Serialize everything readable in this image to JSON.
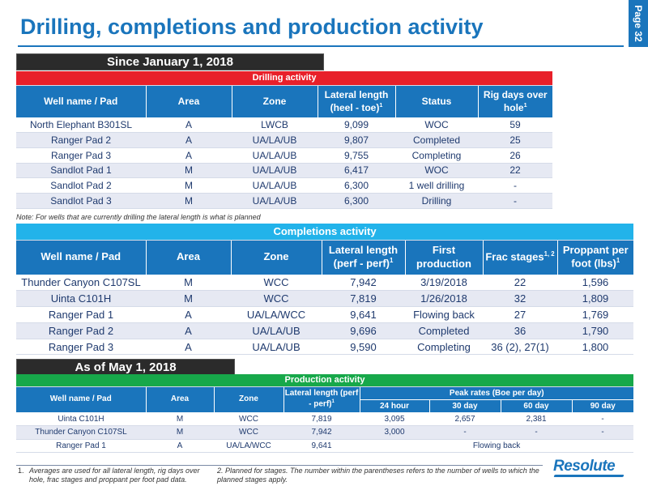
{
  "header": {
    "title": "Drilling, completions and production activity",
    "page_label": "Page 32"
  },
  "since_section": {
    "label": "Since January 1, 2018"
  },
  "drilling": {
    "title": "Drilling activity",
    "headers": [
      "Well name / Pad",
      "Area",
      "Zone",
      "Lateral length (heel - toe)",
      "Status",
      "Rig days over hole"
    ],
    "header_sups": [
      "",
      "",
      "",
      "1",
      "",
      "1"
    ],
    "rows": [
      [
        "North Elephant B301SL",
        "A",
        "LWCB",
        "9,099",
        "WOC",
        "59"
      ],
      [
        "Ranger Pad 2",
        "A",
        "UA/LA/UB",
        "9,807",
        "Completed",
        "25"
      ],
      [
        "Ranger Pad 3",
        "A",
        "UA/LA/UB",
        "9,755",
        "Completing",
        "26"
      ],
      [
        "Sandlot Pad 1",
        "M",
        "UA/LA/UB",
        "6,417",
        "WOC",
        "22"
      ],
      [
        "Sandlot Pad 2",
        "M",
        "UA/LA/UB",
        "6,300",
        "1 well drilling",
        "-"
      ],
      [
        "Sandlot Pad 3",
        "M",
        "UA/LA/UB",
        "6,300",
        "Drilling",
        "-"
      ]
    ],
    "note": "Note: For wells that are currently drilling the lateral length is what is planned"
  },
  "completions": {
    "title": "Completions activity",
    "headers": [
      "Well name / Pad",
      "Area",
      "Zone",
      "Lateral length (perf - perf)",
      "First production",
      "Frac stages",
      "Proppant per foot (lbs)"
    ],
    "header_sups": [
      "",
      "",
      "",
      "1",
      "",
      "1, 2",
      "1"
    ],
    "rows": [
      [
        "Thunder Canyon C107SL",
        "M",
        "WCC",
        "7,942",
        "3/19/2018",
        "22",
        "1,596"
      ],
      [
        "Uinta C101H",
        "M",
        "WCC",
        "7,819",
        "1/26/2018",
        "32",
        "1,809"
      ],
      [
        "Ranger Pad 1",
        "A",
        "UA/LA/WCC",
        "9,641",
        "Flowing back",
        "27",
        "1,769"
      ],
      [
        "Ranger Pad 2",
        "A",
        "UA/LA/UB",
        "9,696",
        "Completed",
        "36",
        "1,790"
      ],
      [
        "Ranger Pad 3",
        "A",
        "UA/LA/UB",
        "9,590",
        "Completing",
        "36 (2), 27(1)",
        "1,800"
      ]
    ]
  },
  "asof_section": {
    "label": "As of May 1, 2018"
  },
  "production": {
    "title": "Production activity",
    "headers": [
      "Well name / Pad",
      "Area",
      "Zone",
      "Lateral length (perf - perf)"
    ],
    "header_sups": [
      "",
      "",
      "",
      "1"
    ],
    "peak_label": "Peak rates (Boe per day)",
    "peak_headers": [
      "24 hour",
      "30 day",
      "60 day",
      "90 day"
    ],
    "rows": [
      [
        "Uinta C101H",
        "M",
        "WCC",
        "7,819",
        "3,095",
        "2,657",
        "2,381",
        "-"
      ],
      [
        "Thunder Canyon C107SL",
        "M",
        "WCC",
        "7,942",
        "3,000",
        "-",
        "-",
        "-"
      ]
    ],
    "merged_row": [
      "Ranger Pad 1",
      "A",
      "UA/LA/WCC",
      "9,641",
      "Flowing back"
    ]
  },
  "footnotes": [
    {
      "num": "1.",
      "text": "Averages are used for all lateral length, rig days over hole, frac stages and proppant per foot pad data."
    },
    {
      "num": "",
      "text": "2. Planned for stages. The number within the parentheses refers to the number of wells to which the planned stages apply."
    }
  ],
  "logo": {
    "text": "Resolute"
  },
  "colors": {
    "title_blue": "#1a75bc",
    "drilling_red": "#e8202a",
    "completions_cyan": "#22b3ea",
    "production_green": "#17a84a",
    "section_dark": "#2b2b2b",
    "row_alt": "#e6e9f3"
  }
}
